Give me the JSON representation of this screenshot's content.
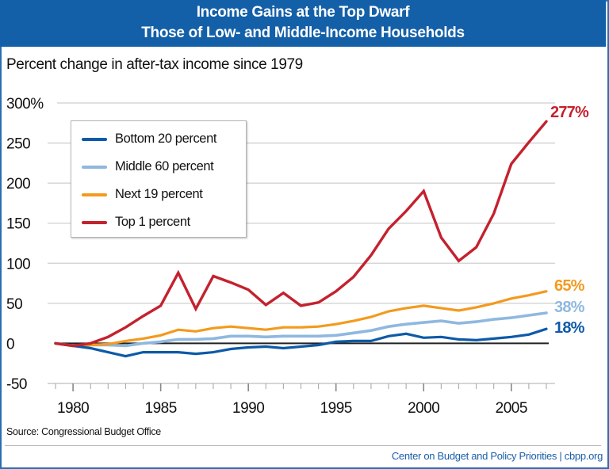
{
  "header": {
    "title_line1": "Income Gains at the Top Dwarf",
    "title_line2": "Those of Low- and Middle-Income Households"
  },
  "subtitle": "Percent change in after-tax income since 1979",
  "source": "Source: Congressional Budget Office",
  "credit": "Center on Budget and Policy Priorities | cbpp.org",
  "colors": {
    "title_bar": "#1460a8",
    "frame_border": "#2e6db4",
    "bottom20": "#0d5aa7",
    "middle60": "#8fb8df",
    "next19": "#f39a1e",
    "top1": "#c4212e",
    "gridline": "#cfcfcf",
    "zero_line": "#222222"
  },
  "chart_data": {
    "type": "line",
    "title": "Income Gains at the Top Dwarf Those of Low- and Middle-Income Households",
    "subtitle": "Percent change in after-tax income since 1979",
    "xlabel": "",
    "ylabel": "Percent change in after-tax income since 1979",
    "x": [
      1979,
      1980,
      1981,
      1982,
      1983,
      1984,
      1985,
      1986,
      1987,
      1988,
      1989,
      1990,
      1991,
      1992,
      1993,
      1994,
      1995,
      1996,
      1997,
      1998,
      1999,
      2000,
      2001,
      2002,
      2003,
      2004,
      2005,
      2006,
      2007
    ],
    "xlim": [
      1979,
      2007
    ],
    "x_ticks": [
      1980,
      1985,
      1990,
      1995,
      2000,
      2005
    ],
    "x_tick_labels": [
      "1980",
      "1985",
      "1990",
      "1995",
      "2000",
      "2005"
    ],
    "ylim": [
      -50,
      300
    ],
    "y_ticks": [
      -50,
      0,
      50,
      100,
      150,
      200,
      250,
      300
    ],
    "y_tick_labels": [
      "-50",
      "0",
      "50",
      "100",
      "150",
      "200",
      "250",
      "300%"
    ],
    "grid": true,
    "legend_position": "top-left",
    "series": [
      {
        "name": "Bottom 20 percent",
        "key": "bottom20",
        "values": [
          0,
          -3,
          -6,
          -11,
          -16,
          -11,
          -11,
          -11,
          -13,
          -11,
          -7,
          -5,
          -4,
          -6,
          -4,
          -2,
          2,
          3,
          3,
          9,
          12,
          7,
          8,
          5,
          4,
          6,
          8,
          11,
          18
        ],
        "end_label": "18%"
      },
      {
        "name": "Middle 60 percent",
        "key": "middle60",
        "values": [
          0,
          -3,
          -2,
          -2,
          -3,
          0,
          2,
          5,
          5,
          6,
          9,
          9,
          8,
          9,
          9,
          9,
          10,
          13,
          16,
          21,
          24,
          26,
          28,
          25,
          27,
          30,
          32,
          35,
          38
        ],
        "end_label": "38%"
      },
      {
        "name": "Next 19 percent",
        "key": "next19",
        "values": [
          0,
          -3,
          -2,
          -1,
          3,
          6,
          10,
          17,
          15,
          19,
          21,
          19,
          17,
          20,
          20,
          21,
          24,
          28,
          33,
          40,
          44,
          47,
          44,
          41,
          45,
          50,
          56,
          60,
          65
        ],
        "end_label": "65%"
      },
      {
        "name": "Top 1 percent",
        "key": "top1",
        "values": [
          0,
          -3,
          0,
          8,
          20,
          34,
          47,
          88,
          43,
          84,
          76,
          67,
          48,
          63,
          47,
          51,
          65,
          83,
          110,
          143,
          165,
          190,
          132,
          103,
          120,
          162,
          224,
          251,
          277
        ],
        "end_label": "277%"
      }
    ]
  }
}
